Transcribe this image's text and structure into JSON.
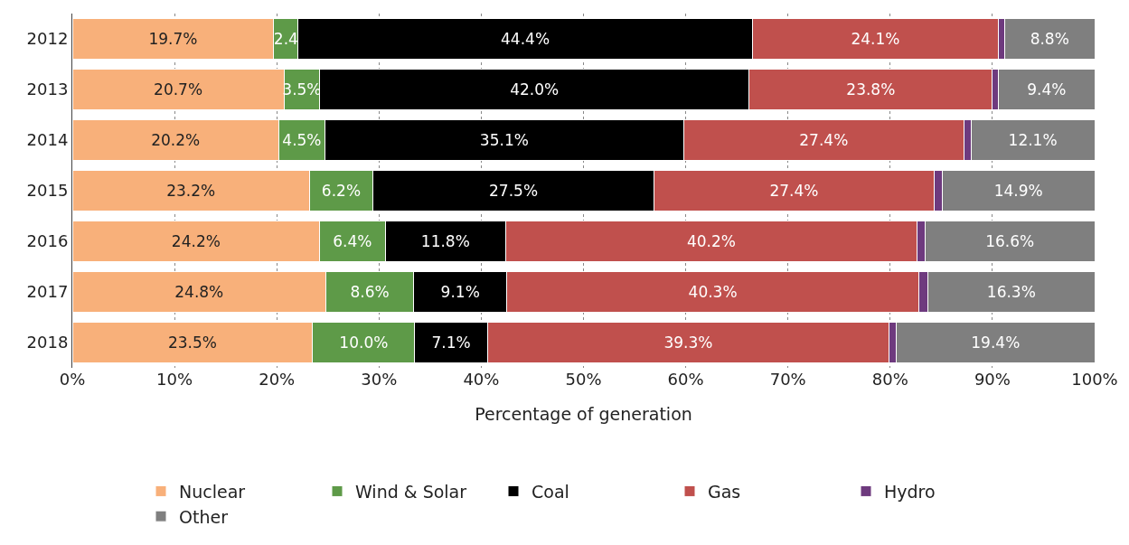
{
  "chart_data": {
    "type": "bar",
    "orientation": "horizontal",
    "stacked": true,
    "xlabel": "Percentage of generation",
    "categories": [
      "2012",
      "2013",
      "2014",
      "2015",
      "2016",
      "2017",
      "2018"
    ],
    "series": [
      {
        "name": "Nuclear",
        "color": "#f8b07a",
        "values": [
          19.7,
          20.7,
          20.2,
          23.2,
          24.2,
          24.8,
          23.5
        ],
        "value_labels": [
          "19.7%",
          "20.7%",
          "20.2%",
          "23.2%",
          "24.2%",
          "24.8%",
          "23.5%"
        ]
      },
      {
        "name": "Wind & Solar",
        "color": "#5e9a48",
        "values": [
          2.4,
          3.5,
          4.5,
          6.2,
          6.4,
          8.6,
          10.0
        ],
        "value_labels": [
          "2.4",
          "3.5%",
          "4.5%",
          "6.2%",
          "6.4%",
          "8.6%",
          "10.0%"
        ]
      },
      {
        "name": "Coal",
        "color": "#000000",
        "values": [
          44.4,
          42.0,
          35.1,
          27.5,
          11.8,
          9.1,
          7.1
        ],
        "value_labels": [
          "44.4%",
          "42.0%",
          "35.1%",
          "27.5%",
          "11.8%",
          "9.1%",
          "7.1%"
        ]
      },
      {
        "name": "Gas",
        "color": "#c0504d",
        "values": [
          24.1,
          23.8,
          27.4,
          27.4,
          40.2,
          40.3,
          39.3
        ],
        "value_labels": [
          "24.1%",
          "23.8%",
          "27.4%",
          "27.4%",
          "40.2%",
          "40.3%",
          "39.3%"
        ]
      },
      {
        "name": "Hydro",
        "color": "#6e3a7e",
        "values": [
          0.6,
          0.6,
          0.7,
          0.8,
          0.8,
          0.9,
          0.7
        ]
      },
      {
        "name": "Other",
        "color": "#7f7f7f",
        "values": [
          8.8,
          9.4,
          12.1,
          14.9,
          16.6,
          16.3,
          19.4
        ],
        "value_labels": [
          "8.8%",
          "9.4%",
          "12.1%",
          "14.9%",
          "16.6%",
          "16.3%",
          "19.4%"
        ]
      }
    ],
    "xlim": [
      0,
      100
    ],
    "xticks": [
      {
        "value": 0,
        "label": "0%"
      },
      {
        "value": 10,
        "label": "10%"
      },
      {
        "value": 20,
        "label": "20%"
      },
      {
        "value": 30,
        "label": "30%"
      },
      {
        "value": 40,
        "label": "40%"
      },
      {
        "value": 50,
        "label": "50%"
      },
      {
        "value": 60,
        "label": "60%"
      },
      {
        "value": 70,
        "label": "70%"
      },
      {
        "value": 80,
        "label": "80%"
      },
      {
        "value": 90,
        "label": "90%"
      },
      {
        "value": 100,
        "label": "100%"
      }
    ],
    "grid": "x",
    "legend": "bottom"
  }
}
